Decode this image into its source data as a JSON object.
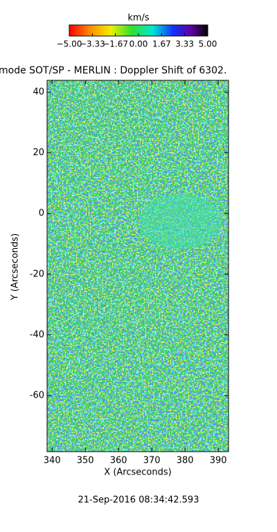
{
  "chart_data": {
    "type": "heatmap",
    "title": "mode SOT/SP - MERLIN : Doppler Shift of 6302.",
    "xlabel": "X (Arcseconds)",
    "ylabel": "Y (Arcseconds)",
    "xlim": [
      338.5,
      393.1
    ],
    "ylim": [
      -78.5,
      43.9
    ],
    "xticks": [
      340,
      350,
      360,
      370,
      380,
      390
    ],
    "yticks": [
      40,
      20,
      0,
      -20,
      -40,
      -60
    ],
    "colorbar": {
      "label": "km/s",
      "lim": [
        -5,
        5
      ],
      "ticks": [
        {
          "value": -5,
          "label": "−5.00"
        },
        {
          "value": -3.33,
          "label": "−3.33"
        },
        {
          "value": -1.67,
          "label": "−1.67"
        },
        {
          "value": 0,
          "label": "0.00"
        },
        {
          "value": 1.67,
          "label": "1.67"
        },
        {
          "value": 3.33,
          "label": "3.33"
        },
        {
          "value": 5,
          "label": "5.00"
        }
      ]
    },
    "footer": "21-Sep-2016 08:34:42.593"
  }
}
